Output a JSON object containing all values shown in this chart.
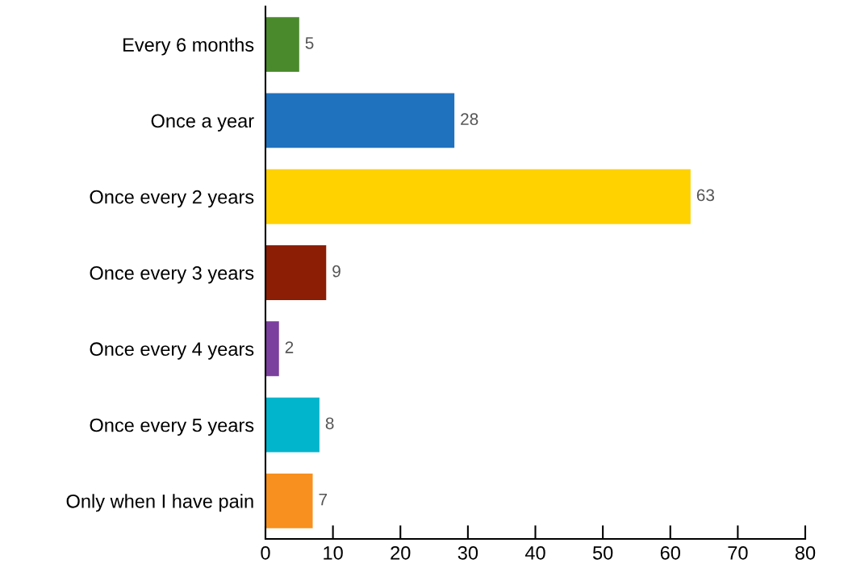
{
  "chart_data": {
    "type": "bar",
    "orientation": "horizontal",
    "categories": [
      "Every 6 months",
      "Once a year",
      "Once every 2 years",
      "Once every 3 years",
      "Once every 4 years",
      "Once every 5 years",
      "Only when I have pain"
    ],
    "values": [
      5,
      28,
      63,
      9,
      2,
      8,
      7
    ],
    "colors": [
      "#4a8a2c",
      "#1f72be",
      "#ffd200",
      "#8b1e05",
      "#7b3f9e",
      "#00b5cc",
      "#f7901e"
    ],
    "xlim": [
      0,
      80
    ],
    "xticks": [
      0,
      10,
      20,
      30,
      40,
      50,
      60,
      70,
      80
    ],
    "data_labels": true
  }
}
